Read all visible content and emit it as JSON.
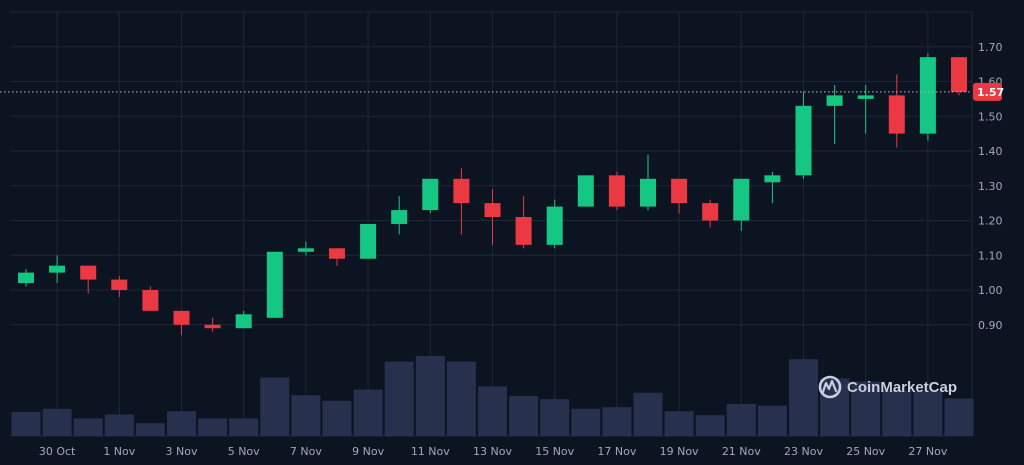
{
  "chart_data": {
    "type": "candlestick",
    "y_axis": {
      "ticks": [
        "0.90",
        "1.00",
        "1.10",
        "1.20",
        "1.30",
        "1.40",
        "1.50",
        "1.60",
        "1.70"
      ],
      "ylim": [
        0.82,
        1.74
      ],
      "position": "right"
    },
    "x_tick_labels": [
      {
        "label": "30 Oct",
        "index": 1
      },
      {
        "label": "1 Nov",
        "index": 3
      },
      {
        "label": "3 Nov",
        "index": 5
      },
      {
        "label": "5 Nov",
        "index": 7
      },
      {
        "label": "7 Nov",
        "index": 9
      },
      {
        "label": "9 Nov",
        "index": 11
      },
      {
        "label": "11 Nov",
        "index": 13
      },
      {
        "label": "13 Nov",
        "index": 15
      },
      {
        "label": "15 Nov",
        "index": 17
      },
      {
        "label": "17 Nov",
        "index": 19
      },
      {
        "label": "19 Nov",
        "index": 21
      },
      {
        "label": "21 Nov",
        "index": 23
      },
      {
        "label": "23 Nov",
        "index": 25
      },
      {
        "label": "25 Nov",
        "index": 27
      },
      {
        "label": "27 Nov",
        "index": 29
      }
    ],
    "candles": [
      {
        "date": "29 Oct",
        "open": 1.02,
        "high": 1.06,
        "low": 1.01,
        "close": 1.05,
        "volume": 0.3
      },
      {
        "date": "30 Oct",
        "open": 1.05,
        "high": 1.1,
        "low": 1.02,
        "close": 1.07,
        "volume": 0.34
      },
      {
        "date": "31 Oct",
        "open": 1.07,
        "high": 1.07,
        "low": 0.99,
        "close": 1.03,
        "volume": 0.22
      },
      {
        "date": "1 Nov",
        "open": 1.03,
        "high": 1.04,
        "low": 0.98,
        "close": 1.0,
        "volume": 0.27
      },
      {
        "date": "2 Nov",
        "open": 1.0,
        "high": 1.01,
        "low": 0.94,
        "close": 0.94,
        "volume": 0.16
      },
      {
        "date": "3 Nov",
        "open": 0.94,
        "high": 0.94,
        "low": 0.87,
        "close": 0.9,
        "volume": 0.31
      },
      {
        "date": "4 Nov",
        "open": 0.9,
        "high": 0.92,
        "low": 0.88,
        "close": 0.89,
        "volume": 0.22
      },
      {
        "date": "5 Nov",
        "open": 0.89,
        "high": 0.94,
        "low": 0.89,
        "close": 0.93,
        "volume": 0.22
      },
      {
        "date": "6 Nov",
        "open": 0.92,
        "high": 1.11,
        "low": 0.92,
        "close": 1.11,
        "volume": 0.73
      },
      {
        "date": "7 Nov",
        "open": 1.11,
        "high": 1.14,
        "low": 1.1,
        "close": 1.12,
        "volume": 0.51
      },
      {
        "date": "8 Nov",
        "open": 1.12,
        "high": 1.12,
        "low": 1.07,
        "close": 1.09,
        "volume": 0.44
      },
      {
        "date": "9 Nov",
        "open": 1.09,
        "high": 1.19,
        "low": 1.09,
        "close": 1.19,
        "volume": 0.58
      },
      {
        "date": "10 Nov",
        "open": 1.19,
        "high": 1.27,
        "low": 1.16,
        "close": 1.23,
        "volume": 0.93
      },
      {
        "date": "11 Nov",
        "open": 1.23,
        "high": 1.32,
        "low": 1.22,
        "close": 1.32,
        "volume": 1.0
      },
      {
        "date": "12 Nov",
        "open": 1.32,
        "high": 1.35,
        "low": 1.16,
        "close": 1.25,
        "volume": 0.93
      },
      {
        "date": "13 Nov",
        "open": 1.25,
        "high": 1.29,
        "low": 1.13,
        "close": 1.21,
        "volume": 0.62
      },
      {
        "date": "14 Nov",
        "open": 1.21,
        "high": 1.27,
        "low": 1.12,
        "close": 1.13,
        "volume": 0.5
      },
      {
        "date": "15 Nov",
        "open": 1.13,
        "high": 1.26,
        "low": 1.12,
        "close": 1.24,
        "volume": 0.46
      },
      {
        "date": "16 Nov",
        "open": 1.24,
        "high": 1.33,
        "low": 1.24,
        "close": 1.33,
        "volume": 0.34
      },
      {
        "date": "17 Nov",
        "open": 1.33,
        "high": 1.34,
        "low": 1.23,
        "close": 1.24,
        "volume": 0.36
      },
      {
        "date": "18 Nov",
        "open": 1.24,
        "high": 1.39,
        "low": 1.23,
        "close": 1.32,
        "volume": 0.54
      },
      {
        "date": "19 Nov",
        "open": 1.32,
        "high": 1.32,
        "low": 1.22,
        "close": 1.25,
        "volume": 0.31
      },
      {
        "date": "20 Nov",
        "open": 1.25,
        "high": 1.26,
        "low": 1.18,
        "close": 1.2,
        "volume": 0.26
      },
      {
        "date": "21 Nov",
        "open": 1.2,
        "high": 1.32,
        "low": 1.17,
        "close": 1.32,
        "volume": 0.4
      },
      {
        "date": "22 Nov",
        "open": 1.31,
        "high": 1.34,
        "low": 1.25,
        "close": 1.33,
        "volume": 0.38
      },
      {
        "date": "23 Nov",
        "open": 1.33,
        "high": 1.57,
        "low": 1.32,
        "close": 1.53,
        "volume": 0.96
      },
      {
        "date": "24 Nov",
        "open": 1.53,
        "high": 1.59,
        "low": 1.42,
        "close": 1.56,
        "volume": 0.72
      },
      {
        "date": "25 Nov",
        "open": 1.55,
        "high": 1.59,
        "low": 1.45,
        "close": 1.56,
        "volume": 0.68
      },
      {
        "date": "26 Nov",
        "open": 1.56,
        "high": 1.62,
        "low": 1.41,
        "close": 1.45,
        "volume": 0.57
      },
      {
        "date": "27 Nov",
        "open": 1.45,
        "high": 1.68,
        "low": 1.43,
        "close": 1.67,
        "volume": 0.56
      },
      {
        "date": "28 Nov",
        "open": 1.67,
        "high": 1.67,
        "low": 1.56,
        "close": 1.57,
        "volume": 0.47
      }
    ],
    "current_price": {
      "value": 1.57,
      "label": "1.57"
    },
    "colors": {
      "up": "#16c784",
      "down": "#ea3943",
      "volume": "#27304d",
      "grid": "#1e2638",
      "background": "#0d1421",
      "tick": "#a1a7bb"
    },
    "grid": true
  },
  "watermark": {
    "text": "CoinMarketCap",
    "icon": "coinmarketcap-logo-icon"
  }
}
